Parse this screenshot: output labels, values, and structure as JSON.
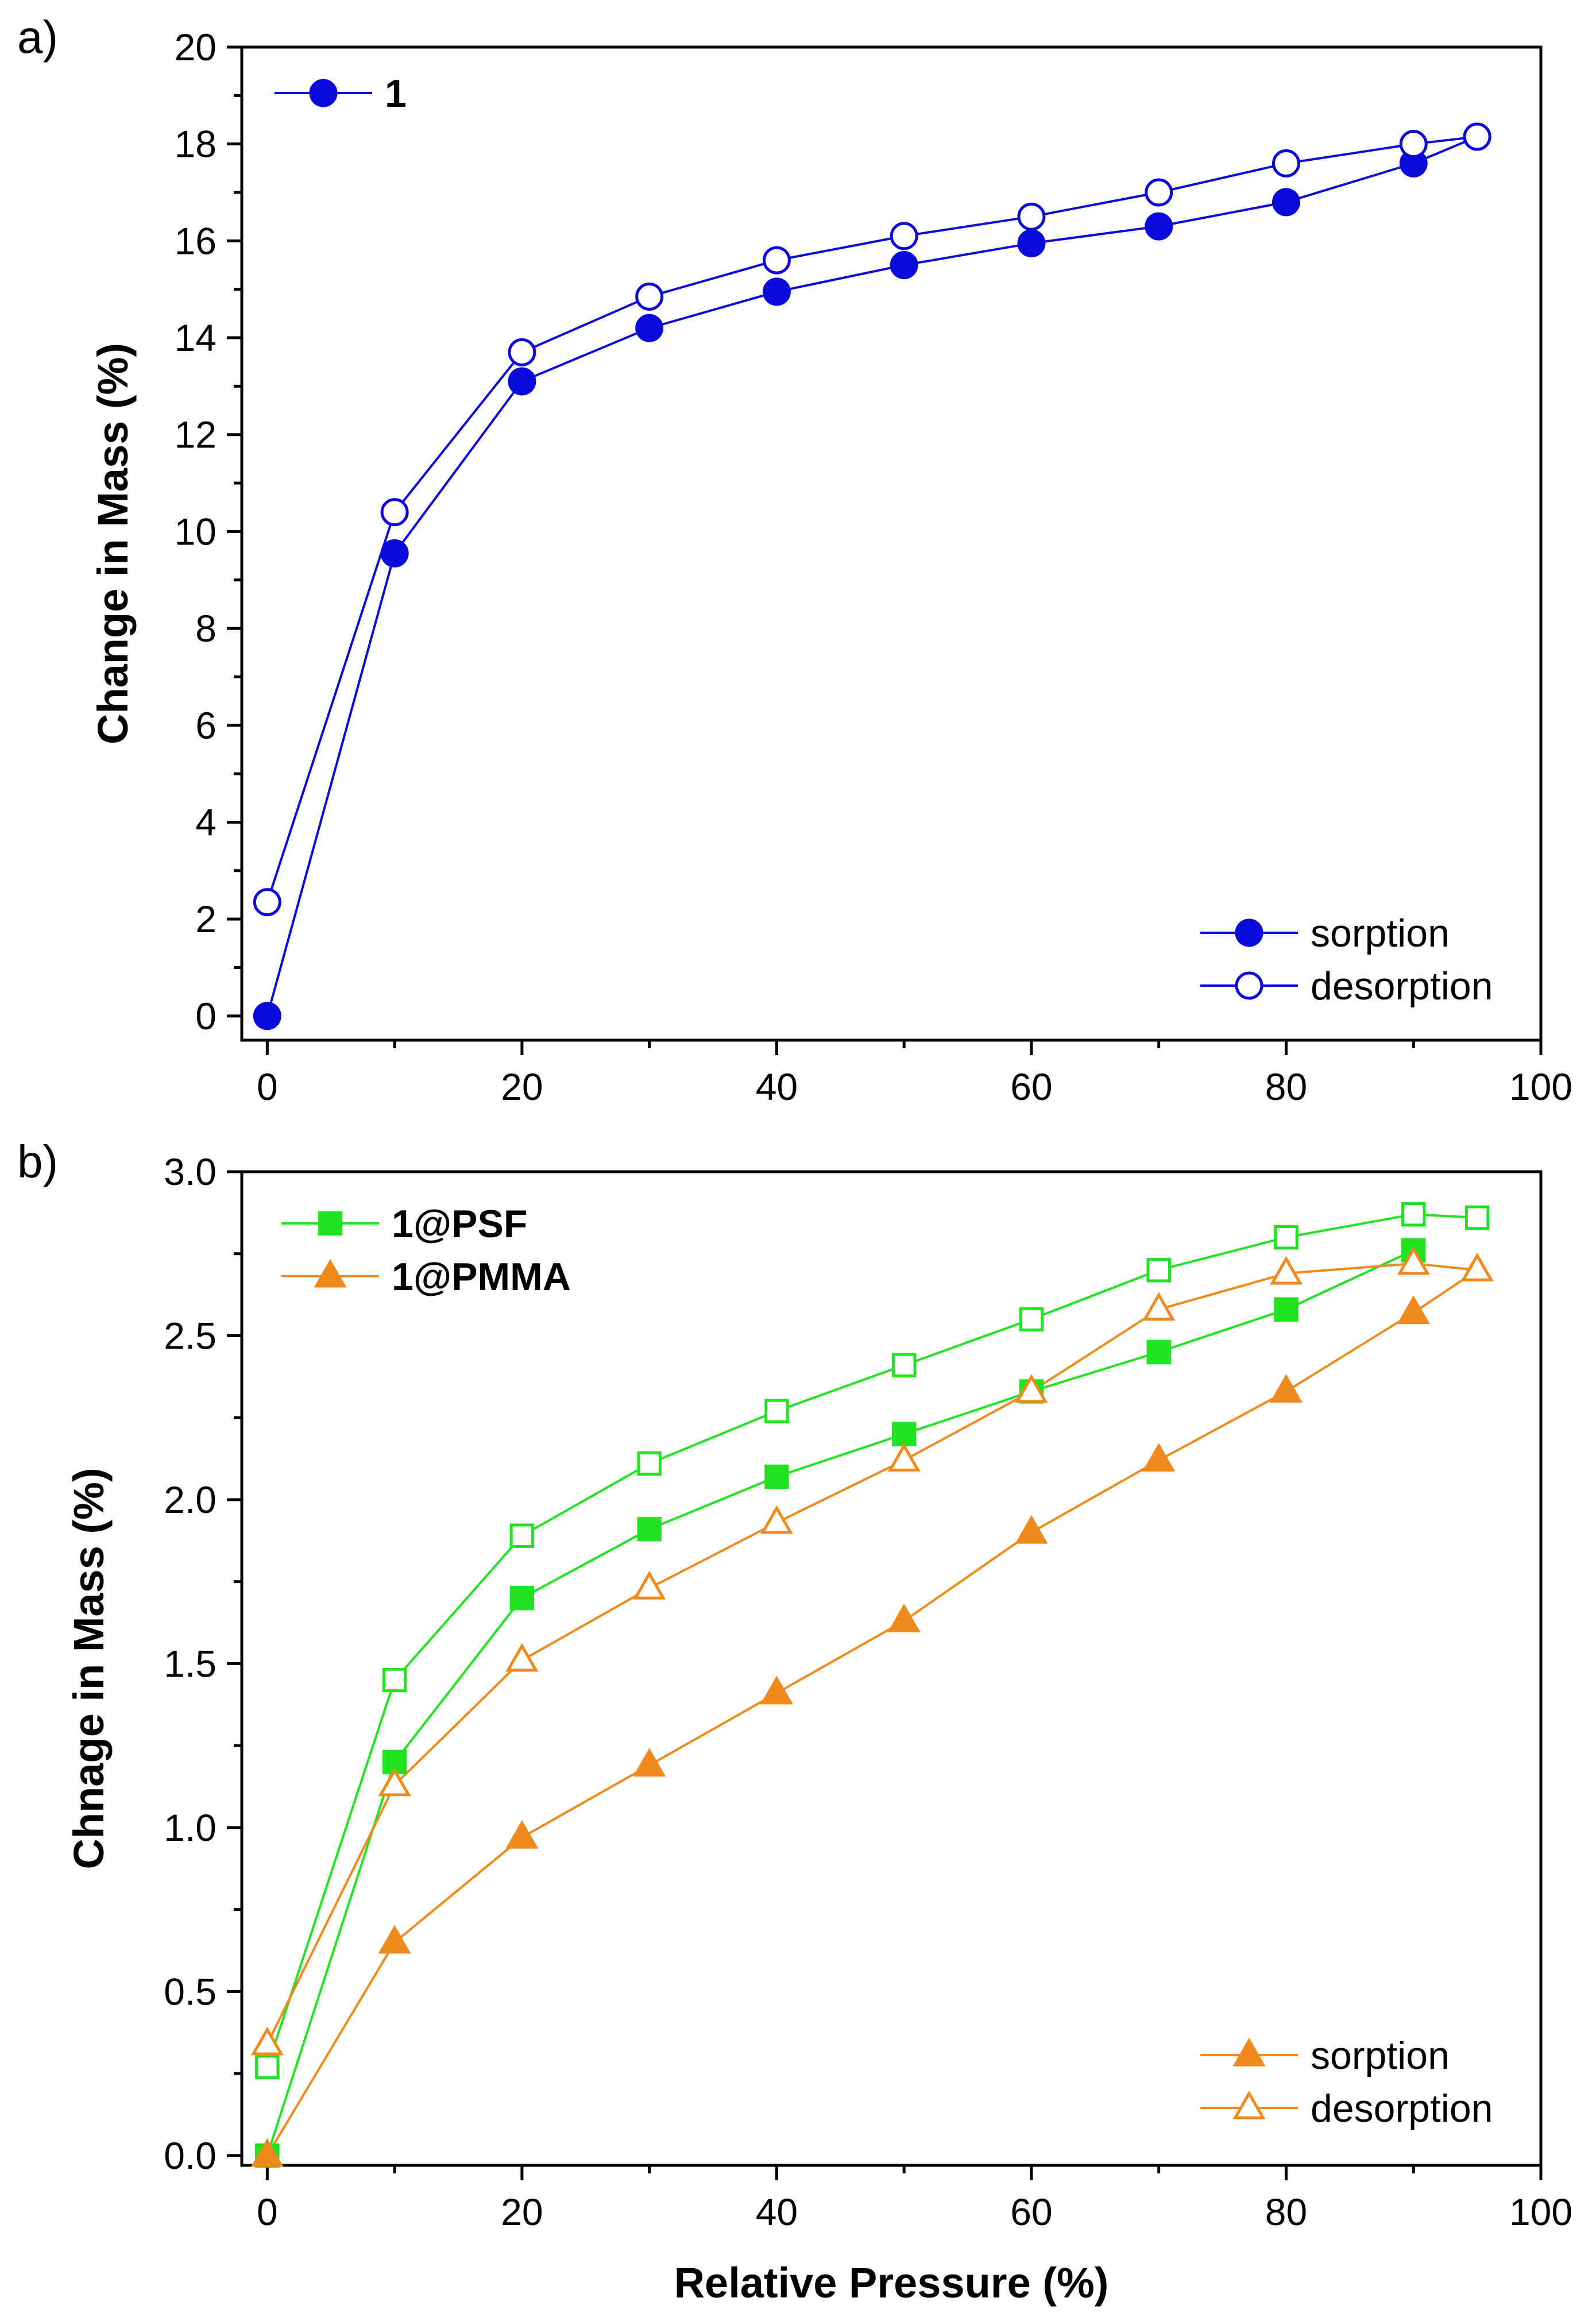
{
  "chart_data": [
    {
      "id": "a",
      "type": "line",
      "panel_label": "a)",
      "xlabel": "",
      "ylabel": "Change in Mass (%)",
      "xlim": [
        -2,
        100
      ],
      "ylim": [
        -0.5,
        20
      ],
      "xticks": [
        0,
        20,
        40,
        60,
        80,
        100
      ],
      "yticks": [
        0,
        2,
        4,
        6,
        8,
        10,
        12,
        14,
        16,
        18,
        20
      ],
      "grid": false,
      "series": [
        {
          "name": "sorption",
          "material": "1",
          "color": "#0a0adc",
          "marker": "circle",
          "filled": true,
          "x": [
            0,
            10,
            20,
            30,
            40,
            50,
            60,
            70,
            80,
            90,
            95
          ],
          "y": [
            0.0,
            9.55,
            13.1,
            14.2,
            14.95,
            15.5,
            15.95,
            16.3,
            16.8,
            17.6,
            18.15
          ]
        },
        {
          "name": "desorption",
          "material": "1",
          "color": "#0a0adc",
          "marker": "circle",
          "filled": false,
          "x": [
            0,
            10,
            20,
            30,
            40,
            50,
            60,
            70,
            80,
            90,
            95
          ],
          "y": [
            2.35,
            10.4,
            13.7,
            14.85,
            15.6,
            16.1,
            16.5,
            17.0,
            17.6,
            18.0,
            18.15
          ]
        }
      ],
      "legend_top": {
        "position": "top-left",
        "entries": [
          {
            "label": "1",
            "color": "#0a0adc",
            "marker": "circle",
            "filled": true
          }
        ]
      },
      "legend_bottom": {
        "position": "bottom-right",
        "entries": [
          {
            "label": "sorption",
            "color": "#0a0adc",
            "marker": "circle",
            "filled": true
          },
          {
            "label": "desorption",
            "color": "#0a0adc",
            "marker": "circle",
            "filled": false
          }
        ]
      }
    },
    {
      "id": "b",
      "type": "line",
      "panel_label": "b)",
      "xlabel": "Relative Pressure (%)",
      "ylabel": "Chnage in Mass (%)",
      "xlim": [
        -2,
        100
      ],
      "ylim": [
        -0.03,
        3.0
      ],
      "xticks": [
        0,
        20,
        40,
        60,
        80,
        100
      ],
      "yticks": [
        "0.0",
        "0.5",
        "1.0",
        "1.5",
        "2.0",
        "2.5",
        "3.0"
      ],
      "grid": false,
      "series": [
        {
          "name": "sorption",
          "material": "1@PSF",
          "color": "#22e322",
          "marker": "square",
          "filled": true,
          "x": [
            0,
            10,
            20,
            30,
            40,
            50,
            60,
            70,
            80,
            90
          ],
          "y": [
            0.0,
            1.2,
            1.7,
            1.91,
            2.07,
            2.2,
            2.33,
            2.45,
            2.58,
            2.76
          ]
        },
        {
          "name": "desorption",
          "material": "1@PSF",
          "color": "#22e322",
          "marker": "square",
          "filled": false,
          "x": [
            0,
            10,
            20,
            30,
            40,
            50,
            60,
            70,
            80,
            90,
            95
          ],
          "y": [
            0.27,
            1.45,
            1.89,
            2.11,
            2.27,
            2.41,
            2.55,
            2.7,
            2.8,
            2.87,
            2.86
          ]
        },
        {
          "name": "sorption",
          "material": "1@PMMA",
          "color": "#f08a1c",
          "marker": "triangle",
          "filled": true,
          "x": [
            0,
            10,
            20,
            30,
            40,
            50,
            60,
            70,
            80,
            90,
            95
          ],
          "y": [
            0.0,
            0.65,
            0.97,
            1.19,
            1.41,
            1.63,
            1.9,
            2.12,
            2.33,
            2.57,
            2.7
          ]
        },
        {
          "name": "desorption",
          "material": "1@PMMA",
          "color": "#f08a1c",
          "marker": "triangle",
          "filled": false,
          "x": [
            0,
            10,
            20,
            30,
            40,
            50,
            60,
            70,
            80,
            90,
            95
          ],
          "y": [
            0.34,
            1.13,
            1.51,
            1.73,
            1.93,
            2.12,
            2.33,
            2.58,
            2.69,
            2.72,
            2.7
          ]
        }
      ],
      "legend_top": {
        "position": "top-left",
        "entries": [
          {
            "label": "1@PSF",
            "color": "#22e322",
            "marker": "square",
            "filled": true
          },
          {
            "label": "1@PMMA",
            "color": "#f08a1c",
            "marker": "triangle",
            "filled": true
          }
        ]
      },
      "legend_bottom": {
        "position": "bottom-right",
        "entries": [
          {
            "label": "sorption",
            "color": "#f08a1c",
            "marker": "triangle",
            "filled": true
          },
          {
            "label": "desorption",
            "color": "#f08a1c",
            "marker": "triangle",
            "filled": false
          }
        ]
      }
    }
  ]
}
